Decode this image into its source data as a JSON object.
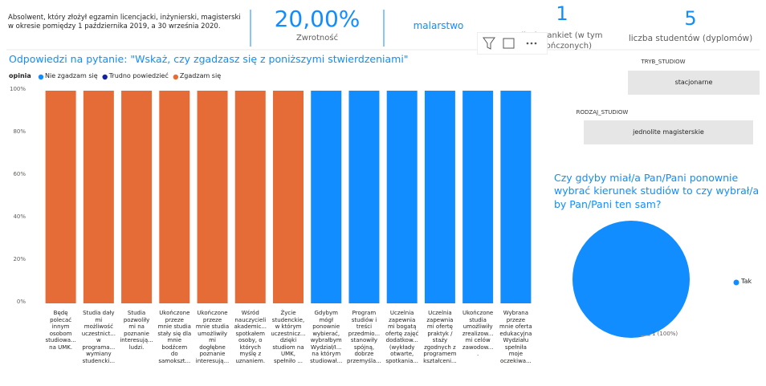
{
  "header": {
    "description": "Absolwent, który złożył egzamin licencjacki, inżynierski, magisterski w okresie pomiędzy 1 października 2019, a 30 września 2020.",
    "cards": [
      {
        "value": "20,00%",
        "label": "Zwrotność"
      },
      {
        "value": "malarstwo"
      },
      {
        "value": "1",
        "label": "liczba ankiet (w tym zakończonych)"
      },
      {
        "value": "5",
        "label": "liczba studentów (dyplomów)"
      }
    ]
  },
  "slicers": [
    {
      "title": "TRYB_STUDIOW",
      "value": "stacjonarne"
    },
    {
      "title": "RODZAJ_STUDIOW",
      "value": "jednolite magisterskie"
    }
  ],
  "chart_data": [
    {
      "type": "bar",
      "stacked": true,
      "title": "Odpowiedzi na pytanie: \"Wskaż, czy zgadzasz się z poniższymi stwierdzeniami\"",
      "legend_title": "opinia",
      "categories": [
        "Będę\npolecać\ninnym\nosobom\nstudiowa...\nna UMK.",
        "Studia dały\nmi\nmożliwość\nuczestnict...\nw\nprograma...\nwymiany\nstudencki...",
        "Studia\npozwoliły\nmi na\npoznanie\ninteresują...\nludzi.",
        "Ukończone\nprzeze\nmnie studia\nstały się dla\nmnie\nbodźcem\ndo\nsamokszt...",
        "Ukończone\nprzeze\nmnie studia\numożliwiły\nmi\ndogłębne\npoznanie\ninteresują...",
        "Wśród\nnauczycieli\nakademic...\nspotkałem\nosoby, o\nktórych\nmyślę z\nuznaniem.",
        "Życie\nstudenckie,\nw którym\nuczestnicz...\ndzięki\nstudiom na\nUMK,\nspełniło ...",
        "Gdybym\nmógł\nponownie\nwybierać,\nwybrałbym\nWydział/I...\nna którym\nstudiował...",
        "Program\nstudiów i\ntreści\nprzedmio...\nstanowiły\nspójną,\ndobrze\nprzemyśla...",
        "Uczelnia\nzapewnia\nmi bogatą\nofertę zajęć\ndodatkow...\n(wykłady\notwarte,\nspotkania...",
        "Uczelnia\nzapewnia\nmi ofertę\npraktyk /\nstaży\nzgodnych z\nprogramem\nkształceni...",
        "Ukończone\nstudia\numożliwiły\nzrealizow...\nmi celów\nzawodow...\n.",
        "Wybrana\nprzeze\nmnie oferta\nedukacyjna\nWydziału\nspełniła\nmoje\noczekiwa..."
      ],
      "series": [
        {
          "name": "Nie zgadzam się",
          "color": "#118DFF",
          "values": [
            0,
            0,
            0,
            0,
            0,
            0,
            0,
            100,
            100,
            100,
            100,
            100,
            100
          ]
        },
        {
          "name": "Trudno powiedzieć",
          "color": "#12239E",
          "values": [
            0,
            0,
            0,
            0,
            0,
            0,
            0,
            0,
            0,
            0,
            0,
            0,
            0
          ]
        },
        {
          "name": "Zgadzam się",
          "color": "#E66C37",
          "values": [
            100,
            100,
            100,
            100,
            100,
            100,
            100,
            0,
            0,
            0,
            0,
            0,
            0
          ]
        }
      ],
      "ylim": [
        0,
        100
      ],
      "yticks": [
        {
          "value": 0,
          "label": "0%"
        },
        {
          "value": 20,
          "label": "20%"
        },
        {
          "value": 40,
          "label": "40%"
        },
        {
          "value": 60,
          "label": "60%"
        },
        {
          "value": 80,
          "label": "80%"
        },
        {
          "value": 100,
          "label": "100%"
        }
      ],
      "grid": false
    },
    {
      "type": "pie",
      "title": "Czy gdyby miał/a Pan/Pani ponownie wybrać kierunek studiów to czy wybrał/a by Pan/Pani ten sam?",
      "categories": [
        "Tak"
      ],
      "values": [
        1
      ],
      "value_labels": [
        "1 (100%)"
      ],
      "colors": [
        "#118DFF"
      ]
    }
  ]
}
